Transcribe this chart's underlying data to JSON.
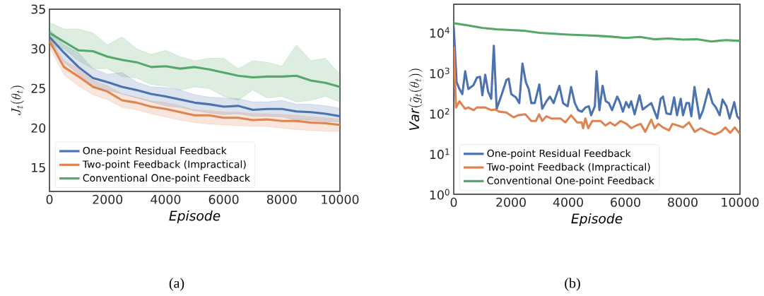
{
  "chart_data": [
    {
      "type": "line",
      "xlabel": "Episode",
      "ylabel": "J_t(\\theta_t)",
      "annotations": [
        "(a)"
      ],
      "x": [
        0,
        500,
        1000,
        1500,
        2000,
        2500,
        3000,
        3500,
        4000,
        4500,
        5000,
        5500,
        6000,
        6500,
        7000,
        7500,
        8000,
        8500,
        9000,
        9500,
        10000
      ],
      "xlim": [
        0,
        10000
      ],
      "xticks": [
        0,
        2000,
        4000,
        6000,
        8000,
        10000
      ],
      "ylim": [
        12,
        35
      ],
      "yticks": [
        15,
        20,
        25,
        30,
        35
      ],
      "grid": false,
      "legend": "bottom left",
      "series": [
        {
          "name": "One-point Residual Feedback",
          "color": "#4c72b0",
          "values": [
            31.5,
            29.5,
            27.7,
            26.3,
            25.8,
            25.2,
            24.8,
            24.3,
            24.0,
            23.6,
            23.2,
            23.0,
            22.7,
            22.8,
            22.3,
            22.4,
            22.4,
            22.1,
            22.0,
            21.8,
            21.5
          ],
          "upper": [
            32.5,
            30.5,
            29.5,
            27.5,
            26.8,
            27.0,
            25.8,
            25.2,
            25.1,
            24.8,
            24.2,
            23.9,
            23.8,
            23.7,
            23.3,
            23.3,
            23.5,
            23.0,
            23.0,
            22.8,
            22.5
          ],
          "lower": [
            30.5,
            28.3,
            26.8,
            25.3,
            24.8,
            24.3,
            23.8,
            23.3,
            22.8,
            22.6,
            22.2,
            21.9,
            21.7,
            21.8,
            21.5,
            21.5,
            21.4,
            21.0,
            21.0,
            20.8,
            20.8
          ]
        },
        {
          "name": "Two-point Feedback (Impractical)",
          "color": "#dd8452",
          "values": [
            31.0,
            27.7,
            26.5,
            25.2,
            24.6,
            23.5,
            23.2,
            22.7,
            22.4,
            22.0,
            21.6,
            21.6,
            21.3,
            21.3,
            21.0,
            21.1,
            20.9,
            20.9,
            20.7,
            20.6,
            20.4
          ],
          "upper": [
            31.5,
            28.5,
            27.5,
            26.0,
            25.3,
            24.3,
            23.9,
            23.4,
            23.2,
            22.8,
            22.3,
            22.2,
            22.0,
            22.0,
            21.8,
            21.8,
            21.7,
            21.6,
            21.4,
            21.3,
            21.1
          ],
          "lower": [
            30.2,
            26.7,
            25.3,
            24.2,
            23.6,
            22.6,
            22.3,
            21.8,
            21.4,
            21.0,
            20.7,
            20.5,
            20.4,
            20.3,
            20.2,
            20.2,
            20.0,
            19.8,
            19.7,
            19.6,
            19.6
          ]
        },
        {
          "name": "Conventional One-point Feedback",
          "color": "#55a868",
          "values": [
            32.0,
            30.9,
            29.8,
            29.7,
            29.0,
            28.6,
            28.3,
            27.7,
            27.8,
            27.5,
            27.7,
            27.4,
            27.0,
            26.6,
            26.4,
            26.5,
            26.5,
            26.6,
            26.0,
            25.7,
            25.2
          ],
          "upper": [
            33.3,
            32.5,
            32.5,
            32.0,
            30.5,
            31.5,
            30.0,
            29.3,
            29.8,
            29.0,
            28.5,
            28.8,
            28.8,
            27.5,
            28.5,
            28.3,
            27.8,
            30.5,
            28.5,
            28.8,
            26.8
          ],
          "lower": [
            30.5,
            30.0,
            28.5,
            27.5,
            27.5,
            26.5,
            26.3,
            25.5,
            25.3,
            24.8,
            25.2,
            25.0,
            24.0,
            23.5,
            24.8,
            23.8,
            24.0,
            23.3,
            23.5,
            24.0,
            23.3
          ]
        }
      ]
    },
    {
      "type": "line",
      "xlabel": "Episode",
      "ylabel": "\\mathit{Var}(\\tilde{g}_t(\\theta_t))",
      "annotations": [
        "(b)"
      ],
      "log": true,
      "xlim": [
        0,
        10000
      ],
      "xticks": [
        0,
        2000,
        4000,
        6000,
        8000,
        10000
      ],
      "ylim": [
        1,
        50000
      ],
      "yticks": [
        {
          "value": 1,
          "label": "10$^{0}$"
        },
        {
          "value": 10,
          "label": "10$^{1}$"
        },
        {
          "value": 100,
          "label": "10$^{2}$"
        },
        {
          "value": 1000,
          "label": "10$^{3}$"
        },
        {
          "value": 10000,
          "label": "10$^{4}$"
        }
      ],
      "grid": false,
      "legend": "bottom left",
      "series": [
        {
          "name": "One-point Residual Feedback",
          "color": "#4c72b0",
          "x": [
            0,
            100,
            200,
            300,
            400,
            510,
            690,
            810,
            920,
            1000,
            1100,
            1200,
            1310,
            1400,
            1500,
            1680,
            1840,
            1920,
            2010,
            2170,
            2290,
            2400,
            2520,
            2620,
            2710,
            2830,
            2990,
            3090,
            3240,
            3360,
            3490,
            3690,
            3820,
            3980,
            4100,
            4230,
            4350,
            4470,
            4600,
            4720,
            4800,
            4930,
            4990,
            5090,
            5200,
            5310,
            5420,
            5530,
            5710,
            5790,
            5910,
            6020,
            6120,
            6200,
            6320,
            6490,
            6600,
            6900,
            7110,
            7230,
            7310,
            7430,
            7580,
            7700,
            7800,
            7930,
            8010,
            8130,
            8220,
            8300,
            8410,
            8590,
            8710,
            8900,
            9040,
            9160,
            9290,
            9390,
            9530,
            9640,
            9800,
            9900,
            10000
          ],
          "values": [
            14000,
            590,
            400,
            300,
            1100,
            400,
            500,
            770,
            800,
            280,
            900,
            350,
            230,
            4700,
            130,
            300,
            670,
            720,
            300,
            250,
            180,
            1700,
            590,
            400,
            180,
            180,
            520,
            130,
            200,
            260,
            180,
            480,
            180,
            150,
            450,
            180,
            120,
            110,
            140,
            150,
            90,
            150,
            1100,
            120,
            480,
            200,
            180,
            120,
            260,
            200,
            110,
            190,
            140,
            200,
            95,
            280,
            125,
            180,
            75,
            230,
            260,
            100,
            95,
            250,
            90,
            230,
            90,
            180,
            180,
            85,
            450,
            75,
            120,
            400,
            180,
            140,
            90,
            220,
            150,
            75,
            190,
            85,
            70
          ]
        },
        {
          "name": "Two-point Feedback (Impractical)",
          "color": "#dd8452",
          "x": [
            0,
            80,
            200,
            300,
            400,
            510,
            690,
            810,
            1100,
            1310,
            1430,
            1600,
            1840,
            2090,
            2250,
            2500,
            2710,
            2870,
            2980,
            3090,
            3240,
            3400,
            3570,
            3730,
            3900,
            4100,
            4310,
            4470,
            4520,
            4600,
            4700,
            4840,
            5130,
            5300,
            5460,
            5630,
            5830,
            6040,
            6200,
            6370,
            6530,
            6690,
            6900,
            7020,
            7150,
            7310,
            7520,
            7640,
            7840,
            8010,
            8220,
            8420,
            8630,
            8870,
            9120,
            9330,
            9490,
            9660,
            9820,
            10000
          ],
          "values": [
            4500,
            140,
            200,
            160,
            130,
            140,
            120,
            140,
            140,
            120,
            125,
            110,
            105,
            80,
            90,
            95,
            65,
            65,
            95,
            65,
            85,
            75,
            75,
            75,
            60,
            90,
            60,
            60,
            43,
            75,
            43,
            65,
            65,
            50,
            60,
            50,
            65,
            55,
            43,
            50,
            55,
            35,
            70,
            43,
            55,
            45,
            38,
            55,
            50,
            45,
            60,
            35,
            43,
            35,
            30,
            35,
            45,
            33,
            45,
            31
          ]
        },
        {
          "name": "Conventional One-point Feedback",
          "color": "#55a868",
          "x": [
            0,
            500,
            1000,
            1500,
            2000,
            2500,
            3000,
            3500,
            4000,
            4500,
            5000,
            5500,
            6000,
            6500,
            7000,
            7500,
            8000,
            8500,
            9000,
            9500,
            10000
          ],
          "values": [
            17000,
            15000,
            13000,
            12000,
            11500,
            11000,
            9800,
            9300,
            8900,
            8600,
            8300,
            7900,
            7300,
            7800,
            6800,
            7100,
            6700,
            6800,
            6000,
            6500,
            6200
          ]
        }
      ]
    }
  ]
}
